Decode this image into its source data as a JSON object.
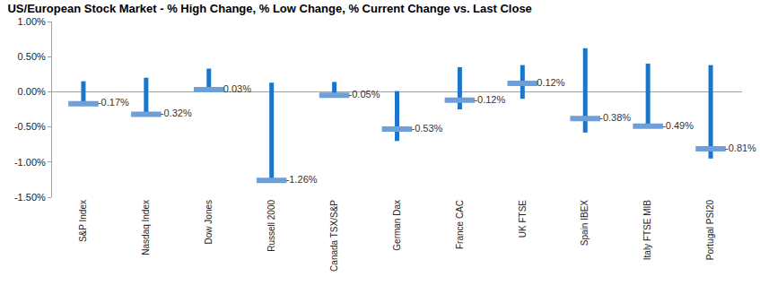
{
  "chart_data": {
    "type": "range_bar",
    "title": "US/European Stock Market - % High Change, % Low Change, % Current Change vs. Last Close",
    "categories": [
      "S&P Index",
      "Nasdaq Index",
      "Dow Jones",
      "Russell 2000",
      "Canada TSX/S&P",
      "German Dax",
      "France CAC",
      "UK FTSE",
      "Spain IBEX",
      "Italy FTSE MIB",
      "Portugal PSI20"
    ],
    "high": [
      0.15,
      0.2,
      0.33,
      0.13,
      0.14,
      0.01,
      0.35,
      0.38,
      0.62,
      0.4,
      0.38
    ],
    "low": [
      -0.17,
      -0.32,
      0.0,
      -1.26,
      -0.05,
      -0.7,
      -0.25,
      -0.1,
      -0.58,
      -0.49,
      -0.95
    ],
    "values": [
      -0.17,
      -0.32,
      0.03,
      -1.26,
      -0.05,
      -0.53,
      -0.12,
      0.12,
      -0.38,
      -0.49,
      -0.81
    ],
    "value_labels": [
      "-0.17%",
      "-0.32%",
      "0.03%",
      "-1.26%",
      "-0.05%",
      "-0.53%",
      "-0.12%",
      "0.12%",
      "-0.38%",
      "-0.49%",
      "-0.81%"
    ],
    "color": "#1b75c9",
    "marker": "dash",
    "ylim": [
      -1.5,
      1
    ],
    "yticks": [
      {
        "value": -1.5,
        "label": "-1.50%"
      },
      {
        "value": -1,
        "label": "-1.00%"
      },
      {
        "value": -0.5,
        "label": "-0.50%"
      },
      {
        "value": 0,
        "label": "0.00%"
      },
      {
        "value": 0.5,
        "label": "0.50%"
      },
      {
        "value": 1,
        "label": "1.00%"
      }
    ],
    "grid": false,
    "data_labels": true
  }
}
